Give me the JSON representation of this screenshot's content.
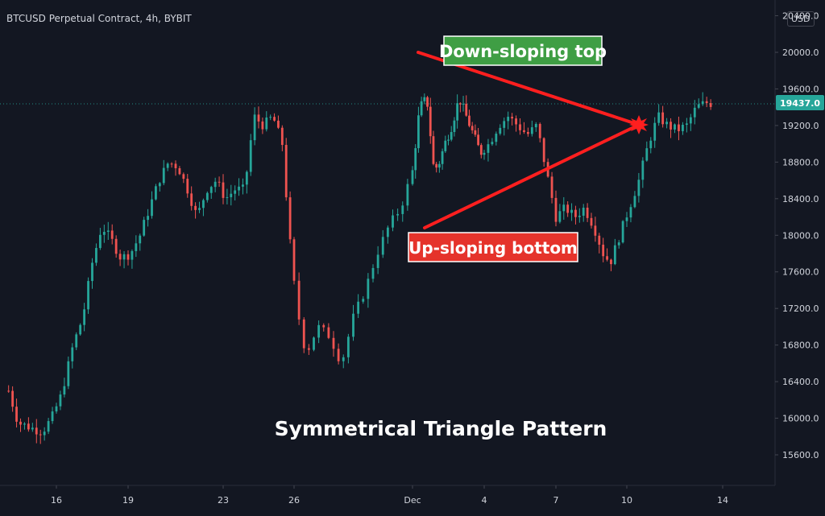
{
  "header": {
    "symbol": "BTCUSD Perpetual Contract, 4h, BYBIT",
    "currency": "USD"
  },
  "price_tag": "19437.0",
  "annotations": {
    "top": "Down-sloping top",
    "bottom": "Up-sloping bottom",
    "pattern": "Symmetrical Triangle Pattern"
  },
  "colors": {
    "background": "#131722",
    "bull": "#26a69a",
    "bear": "#ef5350",
    "line": "#ff1f1f",
    "top_label_bg": "#3f9e44",
    "bottom_label_bg": "#e5332b",
    "price_tag_bg": "#26a69a"
  },
  "chart_data": {
    "type": "candlestick",
    "title": "BTCUSD Perpetual Contract, 4h, BYBIT",
    "ylim": [
      15350,
      20600
    ],
    "y_ticks": [
      "15600.0",
      "16000.0",
      "16400.0",
      "16800.0",
      "17200.0",
      "17600.0",
      "18000.0",
      "18400.0",
      "18800.0",
      "19200.0",
      "19600.0",
      "20000.0",
      "20400.0"
    ],
    "x_ticks": [
      "16",
      "19",
      "23",
      "26",
      "Dec",
      "4",
      "7",
      "10",
      "14"
    ],
    "last_price": 19437.0,
    "price_path": [
      {
        "x": 14.0,
        "price": 16300
      },
      {
        "x": 14.4,
        "price": 15950
      },
      {
        "x": 14.9,
        "price": 15900
      },
      {
        "x": 15.4,
        "price": 15850
      },
      {
        "x": 15.8,
        "price": 16000
      },
      {
        "x": 16.2,
        "price": 16250
      },
      {
        "x": 16.7,
        "price": 16800
      },
      {
        "x": 17.1,
        "price": 17100
      },
      {
        "x": 17.5,
        "price": 17700
      },
      {
        "x": 17.9,
        "price": 18100
      },
      {
        "x": 18.3,
        "price": 17950
      },
      {
        "x": 18.7,
        "price": 17750
      },
      {
        "x": 19.1,
        "price": 17800
      },
      {
        "x": 19.5,
        "price": 18000
      },
      {
        "x": 19.9,
        "price": 18300
      },
      {
        "x": 20.3,
        "price": 18600
      },
      {
        "x": 20.7,
        "price": 18800
      },
      {
        "x": 21.1,
        "price": 18750
      },
      {
        "x": 21.5,
        "price": 18500
      },
      {
        "x": 21.9,
        "price": 18200
      },
      {
        "x": 22.3,
        "price": 18500
      },
      {
        "x": 22.7,
        "price": 18600
      },
      {
        "x": 23.1,
        "price": 18400
      },
      {
        "x": 23.5,
        "price": 18500
      },
      {
        "x": 23.9,
        "price": 18500
      },
      {
        "x": 24.3,
        "price": 19300
      },
      {
        "x": 24.7,
        "price": 19200
      },
      {
        "x": 25.1,
        "price": 19300
      },
      {
        "x": 25.5,
        "price": 19000
      },
      {
        "x": 25.8,
        "price": 18000
      },
      {
        "x": 26.1,
        "price": 17200
      },
      {
        "x": 26.4,
        "price": 16700
      },
      {
        "x": 26.8,
        "price": 17000
      },
      {
        "x": 27.2,
        "price": 16900
      },
      {
        "x": 27.6,
        "price": 16600
      },
      {
        "x": 28.0,
        "price": 17100
      },
      {
        "x": 28.4,
        "price": 17400
      },
      {
        "x": 28.8,
        "price": 17800
      },
      {
        "x": 29.2,
        "price": 18100
      },
      {
        "x": 29.6,
        "price": 18300
      },
      {
        "x": 30.0,
        "price": 18700
      },
      {
        "x": 30.4,
        "price": 19400
      },
      {
        "x": 30.8,
        "price": 19500
      },
      {
        "x": 31.2,
        "price": 18700
      },
      {
        "x": 31.5,
        "price": 18800
      },
      {
        "x": 31.8,
        "price": 19000
      },
      {
        "x": 32.2,
        "price": 19200
      },
      {
        "x": 32.6,
        "price": 19500
      },
      {
        "x": 33.0,
        "price": 19300
      },
      {
        "x": 33.4,
        "price": 19100
      },
      {
        "x": 33.8,
        "price": 18900
      },
      {
        "x": 34.2,
        "price": 19000
      },
      {
        "x": 34.6,
        "price": 19200
      },
      {
        "x": 35.0,
        "price": 19300
      },
      {
        "x": 35.4,
        "price": 19200
      },
      {
        "x": 35.8,
        "price": 19100
      },
      {
        "x": 36.2,
        "price": 19200
      },
      {
        "x": 36.6,
        "price": 18700
      },
      {
        "x": 37.0,
        "price": 18200
      },
      {
        "x": 37.4,
        "price": 18300
      },
      {
        "x": 37.8,
        "price": 18200
      },
      {
        "x": 38.2,
        "price": 18300
      },
      {
        "x": 38.6,
        "price": 18100
      },
      {
        "x": 39.0,
        "price": 17800
      },
      {
        "x": 39.3,
        "price": 17700
      },
      {
        "x": 39.7,
        "price": 18000
      },
      {
        "x": 40.1,
        "price": 18300
      },
      {
        "x": 40.5,
        "price": 18600
      },
      {
        "x": 40.9,
        "price": 19000
      },
      {
        "x": 41.3,
        "price": 19300
      },
      {
        "x": 41.7,
        "price": 19200
      },
      {
        "x": 42.1,
        "price": 19150
      },
      {
        "x": 42.5,
        "price": 19200
      },
      {
        "x": 42.9,
        "price": 19400
      },
      {
        "x": 43.3,
        "price": 19450
      },
      {
        "x": 43.6,
        "price": 19437
      }
    ]
  }
}
